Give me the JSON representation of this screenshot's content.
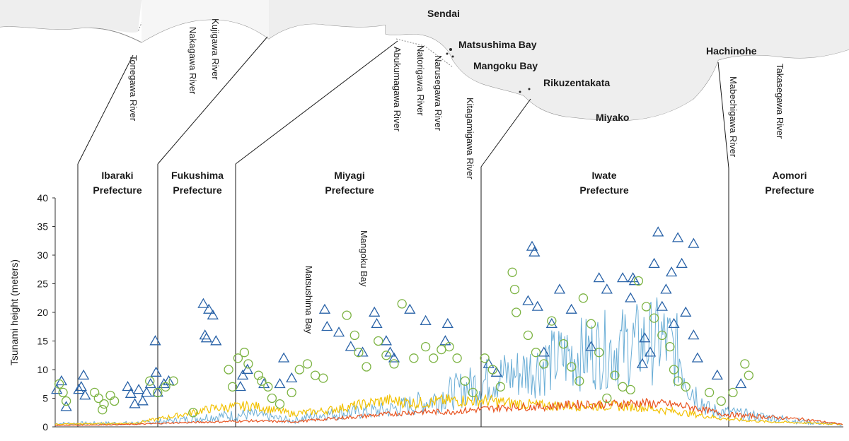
{
  "map": {
    "cities": [
      "Sendai",
      "Matsushima Bay",
      "Mangoku Bay",
      "Rikuzentakata",
      "Miyako",
      "Hachinohe"
    ]
  },
  "rivers": [
    "Tonegawa River",
    "Kujigawa River",
    "Nakagawa River",
    "Abukumagawa River",
    "Natorigawa River",
    "Narusegawa River",
    "Kitagamigawa River",
    "Mabechigawa River",
    "Takasegawa River"
  ],
  "prefectures": [
    {
      "line1": "Ibaraki",
      "line2": "Prefecture"
    },
    {
      "line1": "Fukushima",
      "line2": "Prefecture"
    },
    {
      "line1": "Miyagi",
      "line2": "Prefecture"
    },
    {
      "line1": "Iwate",
      "line2": "Prefecture"
    },
    {
      "line1": "Aomori",
      "line2": "Prefecture"
    }
  ],
  "annotations": [
    "Matsushima Bay",
    "Mangoku Bay"
  ],
  "colors": {
    "triangle": "#2a63a8",
    "circle": "#7cb342",
    "blue_line": "#6baed6",
    "yellow_line": "#f2c100",
    "orange_line": "#e8531f",
    "map_stroke": "#888888",
    "axis": "#333333"
  },
  "chart_data": {
    "type": "scatter",
    "title": "",
    "xlabel": "",
    "ylabel": "Tsunami height (meters)",
    "ylim": [
      0,
      40
    ],
    "yticks": [
      "0",
      "5",
      "10",
      "15",
      "20",
      "25",
      "30",
      "35",
      "40"
    ],
    "x_description": "Coastline position from south (left) to north (right), relative units 0-1000",
    "xlim": [
      0,
      1000
    ],
    "prefecture_boundaries": [
      25,
      125,
      216,
      498,
      805
    ],
    "series": [
      {
        "name": "triangle",
        "marker": "triangle",
        "points": [
          [
            2,
            6.5
          ],
          [
            8,
            8
          ],
          [
            14,
            3.5
          ],
          [
            30,
            6.5
          ],
          [
            33,
            7
          ],
          [
            36,
            9
          ],
          [
            38,
            5.5
          ],
          [
            92,
            7
          ],
          [
            96,
            5.8
          ],
          [
            101,
            4
          ],
          [
            106,
            6.5
          ],
          [
            111,
            4.5
          ],
          [
            116,
            6
          ],
          [
            121,
            7.5
          ],
          [
            127,
            15
          ],
          [
            128,
            9.5
          ],
          [
            130,
            6
          ],
          [
            138,
            7.5
          ],
          [
            144,
            8
          ],
          [
            188,
            21.5
          ],
          [
            190,
            16
          ],
          [
            192,
            15.5
          ],
          [
            195,
            20.5
          ],
          [
            200,
            19.5
          ],
          [
            204,
            15
          ],
          [
            235,
            7
          ],
          [
            238,
            9
          ],
          [
            244,
            10
          ],
          [
            265,
            7.5
          ],
          [
            285,
            7.5
          ],
          [
            290,
            12
          ],
          [
            300,
            8.5
          ],
          [
            342,
            20.5
          ],
          [
            345,
            17.5
          ],
          [
            360,
            16.5
          ],
          [
            375,
            14
          ],
          [
            390,
            13
          ],
          [
            405,
            20
          ],
          [
            408,
            18
          ],
          [
            420,
            15
          ],
          [
            425,
            13
          ],
          [
            430,
            12
          ],
          [
            450,
            20.5
          ],
          [
            470,
            18.5
          ],
          [
            495,
            15
          ],
          [
            498,
            18
          ],
          [
            550,
            11
          ],
          [
            560,
            9.5
          ],
          [
            600,
            22
          ],
          [
            605,
            31.5
          ],
          [
            608,
            30.5
          ],
          [
            612,
            21
          ],
          [
            620,
            13
          ],
          [
            630,
            18
          ],
          [
            640,
            24
          ],
          [
            655,
            20.5
          ],
          [
            680,
            14
          ],
          [
            690,
            26
          ],
          [
            700,
            24
          ],
          [
            720,
            26
          ],
          [
            730,
            22.5
          ],
          [
            733,
            26
          ],
          [
            735,
            25.5
          ],
          [
            748,
            15.5
          ],
          [
            760,
            28.5
          ],
          [
            765,
            34
          ],
          [
            775,
            24
          ],
          [
            782,
            27
          ],
          [
            790,
            33
          ],
          [
            795,
            28.5
          ],
          [
            800,
            20
          ],
          [
            810,
            32
          ],
          [
            785,
            18
          ],
          [
            770,
            21
          ],
          [
            755,
            13
          ],
          [
            745,
            11
          ],
          [
            810,
            16
          ],
          [
            815,
            12
          ],
          [
            840,
            9
          ],
          [
            870,
            7.5
          ]
        ]
      },
      {
        "name": "circle",
        "marker": "circle",
        "points": [
          [
            5,
            7.5
          ],
          [
            10,
            6
          ],
          [
            14,
            4.5
          ],
          [
            50,
            6
          ],
          [
            55,
            5
          ],
          [
            60,
            3
          ],
          [
            62,
            4
          ],
          [
            70,
            5.5
          ],
          [
            75,
            4.5
          ],
          [
            120,
            8
          ],
          [
            130,
            6
          ],
          [
            140,
            7
          ],
          [
            150,
            8
          ],
          [
            175,
            2.5
          ],
          [
            220,
            10
          ],
          [
            225,
            7
          ],
          [
            232,
            12
          ],
          [
            240,
            13
          ],
          [
            245,
            11
          ],
          [
            258,
            9
          ],
          [
            262,
            8
          ],
          [
            270,
            7
          ],
          [
            275,
            5
          ],
          [
            285,
            4
          ],
          [
            300,
            6
          ],
          [
            310,
            10
          ],
          [
            320,
            11
          ],
          [
            330,
            9
          ],
          [
            340,
            8.5
          ],
          [
            370,
            19.5
          ],
          [
            380,
            16
          ],
          [
            385,
            13
          ],
          [
            395,
            10.5
          ],
          [
            410,
            15
          ],
          [
            420,
            12.5
          ],
          [
            430,
            11
          ],
          [
            440,
            21.5
          ],
          [
            455,
            12
          ],
          [
            470,
            14
          ],
          [
            480,
            12
          ],
          [
            490,
            13.5
          ],
          [
            500,
            14
          ],
          [
            510,
            12
          ],
          [
            520,
            8
          ],
          [
            530,
            6
          ],
          [
            545,
            12
          ],
          [
            555,
            10
          ],
          [
            565,
            7
          ],
          [
            580,
            27
          ],
          [
            583,
            24
          ],
          [
            585,
            20
          ],
          [
            600,
            16
          ],
          [
            610,
            13
          ],
          [
            620,
            11
          ],
          [
            630,
            18.5
          ],
          [
            645,
            14.5
          ],
          [
            655,
            10.5
          ],
          [
            665,
            8
          ],
          [
            670,
            22.5
          ],
          [
            680,
            18
          ],
          [
            690,
            13
          ],
          [
            700,
            5
          ],
          [
            710,
            9
          ],
          [
            720,
            7
          ],
          [
            730,
            6.5
          ],
          [
            740,
            25.5
          ],
          [
            750,
            21
          ],
          [
            760,
            19
          ],
          [
            770,
            16
          ],
          [
            780,
            14
          ],
          [
            785,
            10
          ],
          [
            790,
            8
          ],
          [
            800,
            7
          ],
          [
            830,
            6
          ],
          [
            845,
            4.5
          ],
          [
            860,
            6
          ],
          [
            875,
            11
          ],
          [
            880,
            9
          ]
        ]
      }
    ],
    "lines": [
      {
        "name": "blue",
        "description": "blue envelope line",
        "values": [
          [
            0,
            0.8
          ],
          [
            100,
            0.9
          ],
          [
            150,
            1.5
          ],
          [
            200,
            2.5
          ],
          [
            250,
            3
          ],
          [
            300,
            1.5
          ],
          [
            340,
            3
          ],
          [
            380,
            3.5
          ],
          [
            420,
            4
          ],
          [
            470,
            6
          ],
          [
            500,
            8
          ],
          [
            530,
            10
          ],
          [
            560,
            12
          ],
          [
            590,
            13
          ],
          [
            620,
            15
          ],
          [
            650,
            17
          ],
          [
            680,
            18
          ],
          [
            710,
            19
          ],
          [
            740,
            20
          ],
          [
            770,
            21
          ],
          [
            790,
            18
          ],
          [
            805,
            10
          ],
          [
            830,
            4
          ],
          [
            870,
            3
          ],
          [
            920,
            2
          ],
          [
            960,
            1
          ],
          [
            1000,
            0.5
          ]
        ]
      },
      {
        "name": "yellow",
        "description": "yellow line",
        "values": [
          [
            0,
            0.5
          ],
          [
            100,
            0.7
          ],
          [
            150,
            2
          ],
          [
            200,
            3.5
          ],
          [
            250,
            4
          ],
          [
            300,
            2.5
          ],
          [
            340,
            3
          ],
          [
            380,
            4
          ],
          [
            420,
            5
          ],
          [
            460,
            4.5
          ],
          [
            500,
            5
          ],
          [
            540,
            5
          ],
          [
            580,
            4.5
          ],
          [
            620,
            4
          ],
          [
            660,
            4
          ],
          [
            700,
            4
          ],
          [
            740,
            3.8
          ],
          [
            780,
            3
          ],
          [
            805,
            2.5
          ],
          [
            850,
            1.5
          ],
          [
            900,
            1
          ],
          [
            1000,
            0.5
          ]
        ]
      },
      {
        "name": "orange",
        "description": "orange line",
        "values": [
          [
            0,
            0.3
          ],
          [
            100,
            0.5
          ],
          [
            150,
            0.8
          ],
          [
            200,
            1
          ],
          [
            250,
            1.2
          ],
          [
            300,
            1
          ],
          [
            340,
            1.5
          ],
          [
            380,
            2
          ],
          [
            420,
            2.5
          ],
          [
            460,
            3
          ],
          [
            500,
            3
          ],
          [
            540,
            3.5
          ],
          [
            580,
            4
          ],
          [
            620,
            4
          ],
          [
            660,
            4.5
          ],
          [
            700,
            4.5
          ],
          [
            740,
            4.8
          ],
          [
            780,
            4.5
          ],
          [
            805,
            4
          ],
          [
            850,
            2.5
          ],
          [
            900,
            2
          ],
          [
            950,
            1.5
          ],
          [
            1000,
            0.5
          ]
        ]
      }
    ]
  }
}
